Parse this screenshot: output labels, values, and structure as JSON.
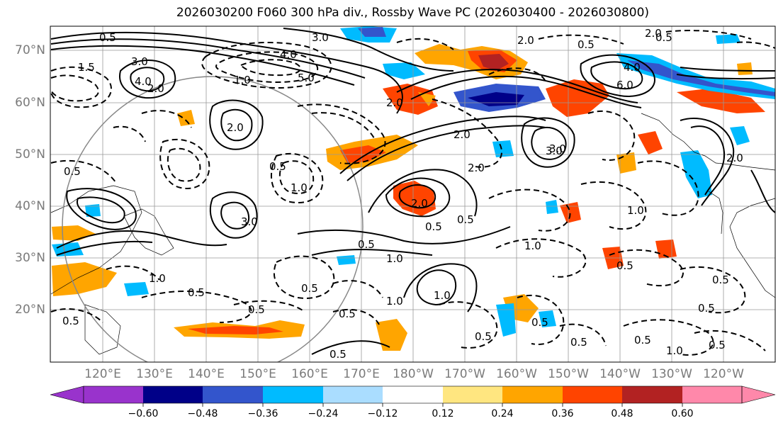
{
  "title": "2026030200 F060 300 hPa div., Rossby Wave PC (2026030400 - 2026030800)",
  "map": {
    "lat_labels": [
      "70°N",
      "60°N",
      "50°N",
      "40°N",
      "30°N",
      "20°N"
    ],
    "lon_labels": [
      "120°E",
      "130°E",
      "140°E",
      "150°E",
      "160°E",
      "170°E",
      "180°W",
      "170°W",
      "160°W",
      "150°W",
      "140°W",
      "130°W",
      "120°W"
    ]
  },
  "colorbar": {
    "colors": [
      "#9933cc",
      "#000088",
      "#3355cc",
      "#00bbff",
      "#aaddff",
      "#ffffff",
      "#ffe680",
      "#ffa500",
      "#ff4400",
      "#b22222",
      "#ff88aa"
    ],
    "tick_labels": [
      "−0.60",
      "−0.48",
      "−0.36",
      "−0.24",
      "−0.12",
      "0.12",
      "0.24",
      "0.36",
      "0.48",
      "0.60"
    ],
    "levels": [
      -0.6,
      -0.48,
      -0.36,
      -0.24,
      -0.12,
      0.12,
      0.24,
      0.36,
      0.48,
      0.6
    ]
  },
  "contour_labels": [
    "0.5",
    "3.0",
    "4.0",
    "2.0",
    "0.5",
    "1.5",
    "4.0",
    "2.0",
    "1.0",
    "5.0",
    "2.0",
    "3.0",
    "0.5",
    "2.0",
    "3.0",
    "2.0",
    "0.5",
    "1.0",
    "0.5",
    "0.5",
    "2.0",
    "0.5",
    "1.0",
    "0.5",
    "0.5",
    "3.0",
    "1.0",
    "0.5",
    "0.5",
    "0.5",
    "1.0",
    "1.0",
    "0.5",
    "0.5",
    "0.5",
    "0.5",
    "0.5",
    "0.5",
    "1.0",
    "2.0",
    "0.5",
    "1.0",
    "0.5",
    "0.5",
    "4.0",
    "6.0",
    "2.0",
    "3.0",
    "1.0",
    "0.5",
    "2.0"
  ]
}
